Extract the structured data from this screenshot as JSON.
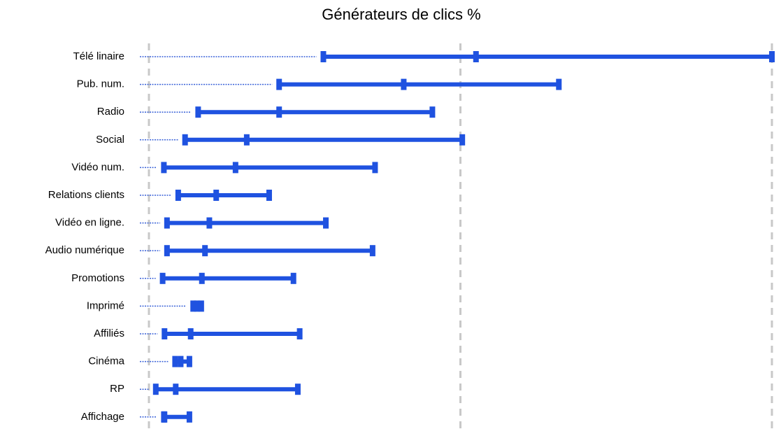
{
  "chart_data": {
    "type": "range",
    "title": "Générateurs de clics %",
    "categories": [
      "Télé linaire",
      "Pub. num.",
      "Radio",
      "Social",
      "Vidéo num.",
      "Relations clients",
      "Vidéo en ligne.",
      "Audio numérique",
      "Promotions",
      "Imprimé",
      "Affiliés",
      "Cinéma",
      "RP",
      "Affichage"
    ],
    "values": [
      [
        28,
        52.5,
        100
      ],
      [
        20.9,
        40.9,
        65.8
      ],
      [
        7.9,
        20.9,
        45.5
      ],
      [
        5.8,
        15.7,
        50.3
      ],
      [
        2.4,
        13.9,
        36.3
      ],
      [
        4.7,
        10.8,
        19.3
      ],
      [
        2.9,
        9.7,
        28.4
      ],
      [
        2.9,
        9.0,
        35.9
      ],
      [
        2.2,
        8.5,
        23.2
      ],
      [
        7.1,
        7.7,
        8.4
      ],
      [
        2.5,
        6.7,
        24.2
      ],
      [
        4.2,
        5.1,
        6.5
      ],
      [
        1.1,
        4.3,
        23.9
      ],
      [
        2.4,
        2.5,
        6.5
      ]
    ],
    "color": "#1f52e0",
    "xlim": [
      0,
      100
    ],
    "xticks": [
      0,
      50,
      100
    ],
    "grid": true
  }
}
